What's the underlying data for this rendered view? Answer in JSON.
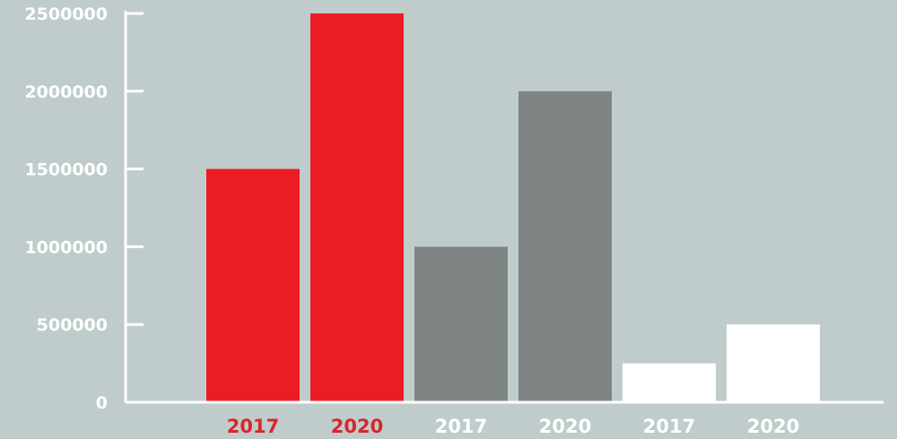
{
  "chart_data": {
    "type": "bar",
    "categories": [
      "2017",
      "2020",
      "2017",
      "2020",
      "2017",
      "2020"
    ],
    "values": [
      1500000,
      2500000,
      1000000,
      2000000,
      250000,
      500000
    ],
    "bar_colors": [
      "#ec1c24",
      "#ec1c24",
      "#7f8484",
      "#7f8484",
      "#ffffff",
      "#ffffff"
    ],
    "label_colors": [
      "#d7262c",
      "#d7262c",
      "#ffffff",
      "#ffffff",
      "#ffffff",
      "#ffffff"
    ],
    "yticks": [
      0,
      500000,
      1000000,
      1500000,
      2000000,
      2500000
    ],
    "ytick_labels": [
      "0",
      "500000",
      "1000000",
      "1500000",
      "2000000",
      "2500000"
    ],
    "ylim": [
      0,
      2500000
    ],
    "title": "",
    "xlabel": "",
    "ylabel": "",
    "grid": false,
    "background_color": "#bfcccb",
    "axis_color": "#ffffff"
  }
}
